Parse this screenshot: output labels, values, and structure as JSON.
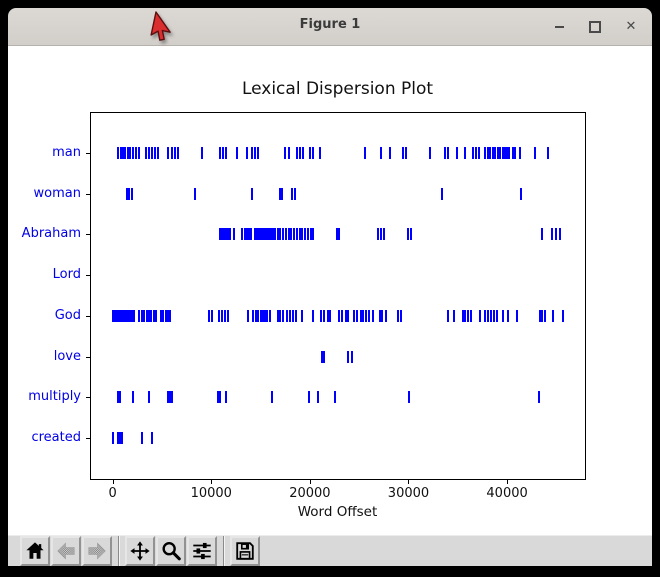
{
  "window": {
    "title": "Figure 1",
    "controls": [
      {
        "name": "minimize",
        "icon": "minimize-icon"
      },
      {
        "name": "maximize",
        "icon": "maximize-icon"
      },
      {
        "name": "close",
        "icon": "close-icon",
        "glyph": "✕"
      }
    ]
  },
  "cursor": {
    "icon": "red-arrow-cursor",
    "color": "#d92f2f"
  },
  "toolbar": {
    "buttons": [
      {
        "name": "home",
        "icon": "home-icon",
        "enabled": true
      },
      {
        "name": "back",
        "icon": "back-arrow-icon",
        "enabled": false
      },
      {
        "name": "forward",
        "icon": "forward-arrow-icon",
        "enabled": false
      },
      {
        "name": "pan",
        "icon": "pan-move-icon",
        "enabled": true
      },
      {
        "name": "zoom-to-rect",
        "icon": "magnifier-icon",
        "enabled": true
      },
      {
        "name": "configure-subplots",
        "icon": "sliders-icon",
        "enabled": true
      },
      {
        "name": "save",
        "icon": "floppy-disk-icon",
        "enabled": true
      }
    ]
  },
  "chart_data": {
    "type": "scatter",
    "marker": "|",
    "title": "Lexical Dispersion Plot",
    "xlabel": "Word Offset",
    "x_ticks": [
      0,
      10000,
      20000,
      30000,
      40000
    ],
    "xlim": [
      -2300,
      47900
    ],
    "grid": false,
    "mark_color": "#0000ff",
    "label_color": "#0000e6",
    "axis_color": "#000000",
    "words": [
      {
        "word": "man",
        "offsets": [
          550,
          800,
          1050,
          1300,
          1550,
          1800,
          2100,
          2400,
          2700,
          3400,
          3650,
          4000,
          4300,
          4600,
          5600,
          6000,
          6350,
          6600,
          9050,
          10900,
          11200,
          11500,
          12600,
          13650,
          14150,
          14450,
          14750,
          17500,
          17900,
          18700,
          19000,
          19300,
          20050,
          20350,
          21050,
          25600,
          27250,
          28150,
          29450,
          29700,
          32200,
          33750,
          34050,
          34950,
          35750,
          36550,
          36850,
          37150,
          37800,
          38100,
          38300,
          38550,
          38800,
          39050,
          39300,
          39550,
          39750,
          39950,
          40200,
          40550,
          40800,
          41350,
          42850,
          44100
        ]
      },
      {
        "word": "woman",
        "offsets": [
          1500,
          1700,
          1950,
          8350,
          14100,
          17000,
          17200,
          18150,
          18450,
          33400,
          41400
        ]
      },
      {
        "word": "Abraham",
        "offsets": [
          10900,
          11100,
          11300,
          11500,
          11700,
          11900,
          12300,
          13100,
          13450,
          13650,
          13850,
          14050,
          14450,
          14650,
          14850,
          15050,
          15250,
          15450,
          15650,
          15850,
          16050,
          16250,
          16450,
          16750,
          17000,
          17300,
          17550,
          17900,
          18100,
          18400,
          18700,
          19000,
          19250,
          19500,
          19800,
          20100,
          20350,
          22750,
          23000,
          26950,
          27250,
          27500,
          29950,
          30300,
          43550,
          44600,
          44950,
          45350
        ]
      },
      {
        "word": "Lord",
        "offsets": []
      },
      {
        "word": "God",
        "offsets": [
          50,
          150,
          350,
          550,
          750,
          950,
          1150,
          1350,
          1550,
          1750,
          1950,
          2150,
          2650,
          2950,
          3150,
          3500,
          3700,
          3900,
          4150,
          4350,
          4900,
          5150,
          5400,
          5600,
          5850,
          9750,
          10050,
          10800,
          11050,
          11400,
          11650,
          13750,
          14250,
          14500,
          14750,
          15000,
          15250,
          15450,
          15700,
          15950,
          16750,
          17000,
          17300,
          17650,
          18000,
          18250,
          18600,
          19250,
          20350,
          21100,
          21400,
          21800,
          22050,
          22950,
          23250,
          23650,
          23900,
          24500,
          24800,
          25150,
          25400,
          25700,
          25950,
          26350,
          27100,
          27350,
          27750,
          28900,
          29200,
          34000,
          34650,
          35500,
          35750,
          36050,
          36300,
          37300,
          37800,
          38100,
          38400,
          38650,
          38950,
          39600,
          40100,
          41000,
          43300,
          43550,
          43800,
          44700,
          45650
        ]
      },
      {
        "word": "love",
        "offsets": [
          21250,
          21450,
          23900,
          24250
        ]
      },
      {
        "word": "multiply",
        "offsets": [
          500,
          700,
          2100,
          3700,
          5600,
          5800,
          6050,
          10650,
          10900,
          11450,
          16150,
          19950,
          20850,
          22500,
          30100,
          43200
        ]
      },
      {
        "word": "created",
        "offsets": [
          30,
          500,
          700,
          900,
          3000,
          3950
        ]
      }
    ]
  }
}
